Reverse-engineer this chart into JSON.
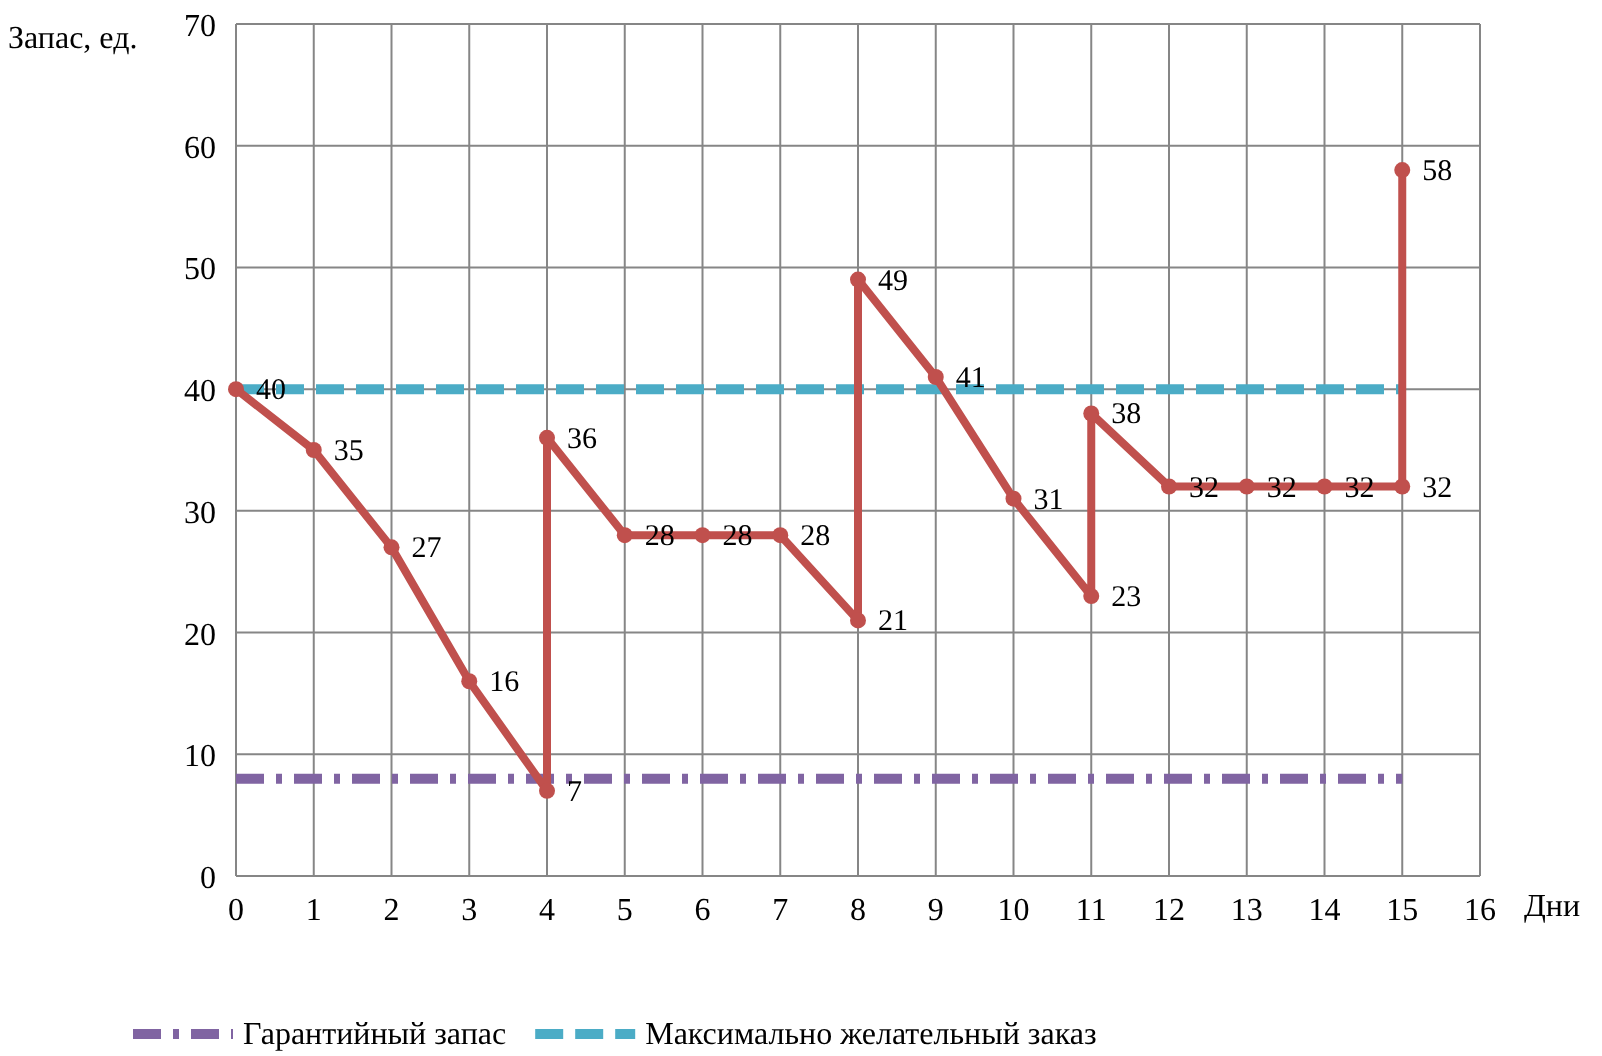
{
  "chart_data": {
    "type": "line",
    "xlabel": "Дни",
    "ylabel": "Запас, ед.",
    "xlim": [
      0,
      16
    ],
    "xticks": [
      0,
      1,
      2,
      3,
      4,
      5,
      6,
      7,
      8,
      9,
      10,
      11,
      12,
      13,
      14,
      15,
      16
    ],
    "ylim": [
      0,
      70
    ],
    "yticks": [
      0,
      10,
      20,
      30,
      40,
      50,
      60,
      70
    ],
    "grid": true,
    "legend": "bottom",
    "series": [
      {
        "color": "#c0504d",
        "marker": "circle",
        "line_style": "solid",
        "x": [
          0,
          1,
          2,
          3,
          4,
          4,
          5,
          6,
          7,
          8,
          8,
          9,
          10,
          11,
          11,
          12,
          13,
          14,
          15,
          15
        ],
        "values": [
          40,
          35,
          27,
          16,
          7,
          36,
          28,
          28,
          28,
          21,
          49,
          41,
          31,
          23,
          38,
          32,
          32,
          32,
          32,
          58
        ],
        "value_labels": [
          "40",
          "35",
          "27",
          "16",
          "7",
          "36",
          "28",
          "28",
          "28",
          "21",
          "49",
          "41",
          "31",
          "23",
          "38",
          "32",
          "32",
          "32",
          "32",
          "58"
        ]
      },
      {
        "name": "Гарантийный запас",
        "color": "#8064a2",
        "marker": "none",
        "line_style": "dashdot",
        "x": [
          0,
          15
        ],
        "values": [
          8,
          8
        ]
      },
      {
        "name": "Максимально желательный заказ",
        "color": "#4bacc6",
        "marker": "none",
        "line_style": "dashed",
        "x": [
          0,
          15
        ],
        "values": [
          40,
          40
        ]
      }
    ]
  }
}
